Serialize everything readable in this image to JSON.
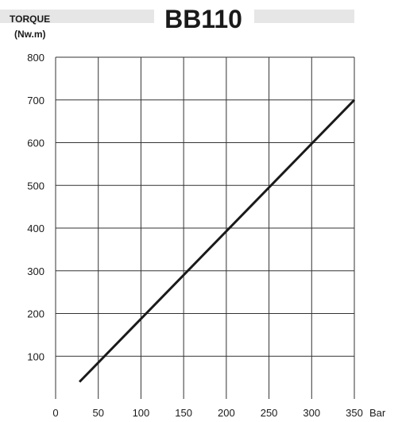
{
  "chart_data": {
    "type": "line",
    "title": "BB110",
    "ylabel_lines": [
      "TORQUE",
      "(Nw.m)"
    ],
    "xlabel": "Bar",
    "xlim": [
      0,
      350
    ],
    "ylim": [
      0,
      800
    ],
    "x_ticks": [
      0,
      50,
      100,
      150,
      200,
      250,
      300,
      350
    ],
    "y_ticks": [
      100,
      200,
      300,
      400,
      500,
      600,
      700,
      800
    ],
    "grid": true,
    "series": [
      {
        "x": [
          28,
          350
        ],
        "y": [
          40,
          700
        ]
      }
    ]
  },
  "colors": {
    "line": "#1a1a1a",
    "grid": "#333333",
    "title_band": "#e6e6e6"
  }
}
